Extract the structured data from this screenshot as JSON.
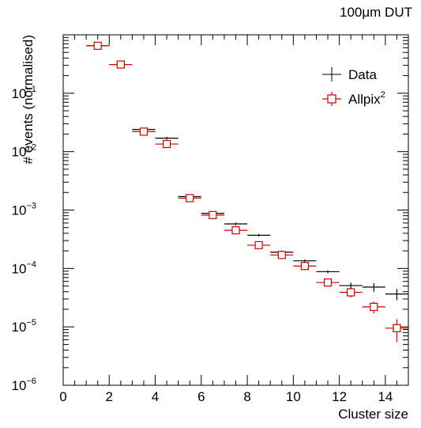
{
  "chart_data": {
    "type": "scatter",
    "title": "100μm DUT",
    "xlabel": "Cluster size",
    "ylabel": "# events (normalised)",
    "x_range": [
      0,
      15
    ],
    "y_range": [
      1e-06,
      1
    ],
    "y_scale": "log",
    "x_ticks": [
      "0",
      "2",
      "4",
      "6",
      "8",
      "10",
      "12",
      "14"
    ],
    "y_ticks": [
      {
        "base": "10",
        "exp": "−6"
      },
      {
        "base": "10",
        "exp": "−5"
      },
      {
        "base": "10",
        "exp": "−4"
      },
      {
        "base": "10",
        "exp": "−3"
      },
      {
        "base": "10",
        "exp": "−2"
      },
      {
        "base": "10",
        "exp": "−1"
      }
    ],
    "grid": false,
    "legend_position": "top-right",
    "series": [
      {
        "name": "Data",
        "color": "#000000",
        "marker": "cross",
        "x": [
          1.5,
          2.5,
          3.5,
          4.5,
          5.5,
          6.5,
          7.5,
          8.5,
          9.5,
          10.5,
          11.5,
          12.5,
          13.5,
          14.5
        ],
        "y": [
          0.65,
          0.31,
          0.024,
          0.017,
          0.0017,
          0.00088,
          0.00058,
          0.00037,
          0.00019,
          0.000135,
          8.8e-05,
          5.1e-05,
          4.8e-05,
          3.65e-05
        ],
        "y_err": [
          0,
          0,
          0,
          0,
          0,
          0,
          0,
          0,
          0,
          0,
          0,
          6e-06,
          8e-06,
          8e-06
        ]
      },
      {
        "name": "Allpix",
        "name_sup": "2",
        "color": "#cc0000",
        "marker": "open-square",
        "x": [
          1.5,
          2.5,
          3.5,
          4.5,
          5.5,
          6.5,
          7.5,
          8.5,
          9.5,
          10.5,
          11.5,
          12.5,
          13.5,
          14.5
        ],
        "y": [
          0.65,
          0.31,
          0.022,
          0.0135,
          0.0016,
          0.00082,
          0.00045,
          0.00025,
          0.00017,
          0.00011,
          5.75e-05,
          3.9e-05,
          2.2e-05,
          9.5e-06
        ],
        "y_err": [
          0,
          0,
          0.003,
          0.002,
          0.0002,
          0.0001,
          5e-05,
          3e-05,
          2e-05,
          1.5e-05,
          7e-06,
          7e-06,
          5e-06,
          4e-06
        ]
      }
    ]
  }
}
